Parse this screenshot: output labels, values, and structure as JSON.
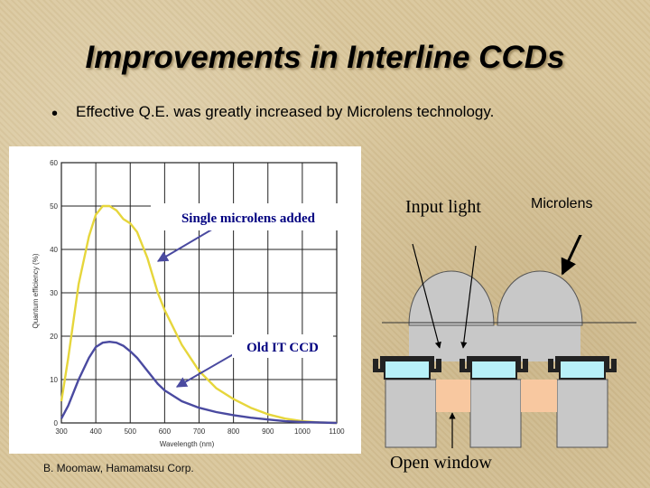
{
  "slide": {
    "title": "Improvements in Interline CCDs",
    "bullet": "Effective Q.E. was greatly increased by Microlens technology.",
    "credit": "B. Moomaw, Hamamatsu Corp."
  },
  "diagram": {
    "input_light_label": "Input light",
    "microlens_label": "Microlens",
    "open_window_label": "Open window",
    "colors": {
      "lens": "#c8c8c8",
      "pixel": "#c8c8c8",
      "window": "#f8c8a0",
      "photodiode": "#b8f0f8",
      "frame": "#222222"
    }
  },
  "chart_data": {
    "type": "line",
    "xlabel": "Wavelength (nm)",
    "ylabel": "Quantum efficiency (%)",
    "xlim": [
      300,
      1100
    ],
    "ylim": [
      0,
      60
    ],
    "xticks": [
      300,
      400,
      500,
      600,
      700,
      800,
      900,
      1000,
      1100
    ],
    "yticks": [
      0,
      10,
      20,
      30,
      40,
      50,
      60
    ],
    "grid": true,
    "annotations": [
      "Single microlens added",
      "Old IT CCD"
    ],
    "series": [
      {
        "key": "microlens",
        "color": "#e6d63c",
        "x": [
          300,
          320,
          350,
          380,
          400,
          420,
          440,
          460,
          480,
          500,
          520,
          550,
          580,
          600,
          650,
          700,
          750,
          800,
          850,
          900,
          950,
          1000,
          1050,
          1100
        ],
        "y": [
          5,
          15,
          32,
          43,
          48,
          50,
          50,
          49,
          47,
          46,
          44,
          38,
          30,
          26,
          18,
          12,
          8,
          5.5,
          3.5,
          2,
          1,
          0.4,
          0.1,
          0
        ]
      },
      {
        "key": "old_it_ccd",
        "color": "#4a4aa0",
        "x": [
          300,
          320,
          350,
          380,
          400,
          420,
          440,
          460,
          480,
          500,
          520,
          550,
          580,
          600,
          650,
          700,
          750,
          800,
          850,
          900,
          950,
          1000,
          1050,
          1100
        ],
        "y": [
          1,
          4,
          10,
          15,
          17.5,
          18.5,
          18.7,
          18.5,
          17.8,
          16.5,
          15,
          12,
          9,
          7.5,
          5,
          3.5,
          2.5,
          1.8,
          1.2,
          0.8,
          0.4,
          0.2,
          0.1,
          0
        ]
      }
    ]
  }
}
